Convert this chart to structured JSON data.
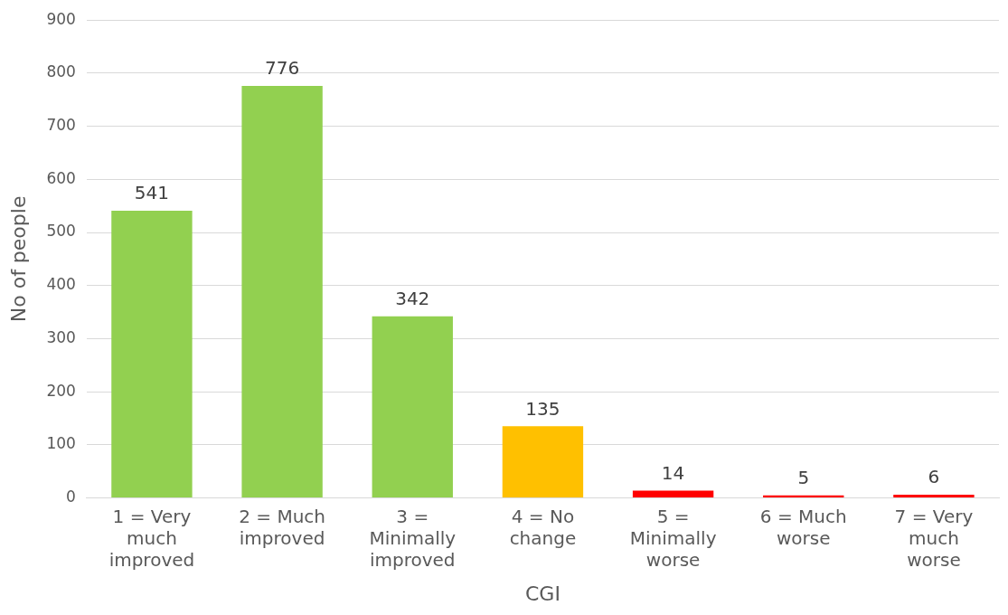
{
  "chart_data": {
    "type": "bar",
    "xlabel": "CGI",
    "ylabel": "No of people",
    "categories": [
      "1 = Very much improved",
      "2 = Much improved",
      "3 = Minimally improved",
      "4 = No change",
      "5 = Minimally worse",
      "6 = Much worse",
      "7 = Very much worse"
    ],
    "values": [
      541,
      776,
      342,
      135,
      14,
      5,
      6
    ],
    "colors": [
      "#92d050",
      "#92d050",
      "#92d050",
      "#ffc000",
      "#ff0000",
      "#ff0000",
      "#ff0000"
    ],
    "ylim": [
      0,
      900
    ],
    "yticks": [
      0,
      100,
      200,
      300,
      400,
      500,
      600,
      700,
      800,
      900
    ],
    "grid": "y",
    "data_labels": true
  }
}
